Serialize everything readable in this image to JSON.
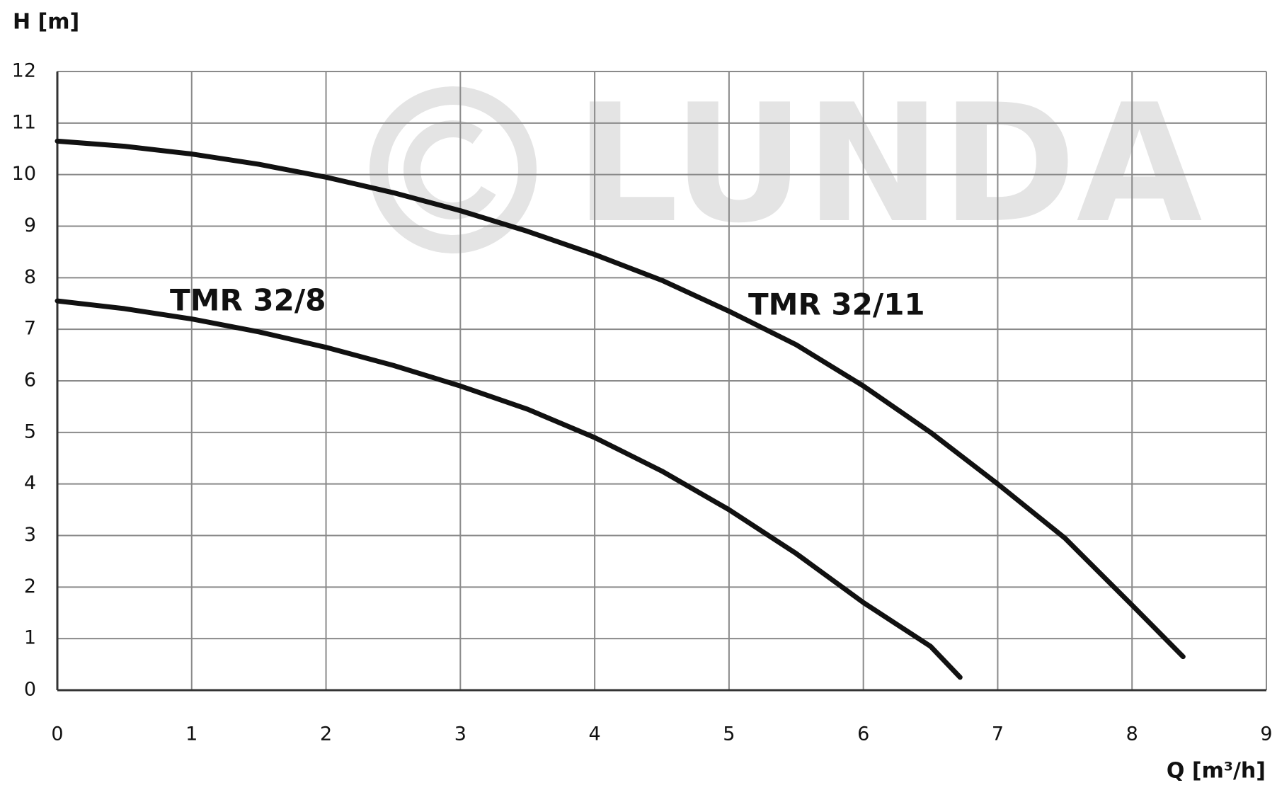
{
  "chart_data": {
    "type": "line",
    "y_label": "H [m]",
    "x_label": "Q [m³/h]",
    "watermark": "LUNDA",
    "xlim": [
      0,
      9
    ],
    "xticks": [
      0,
      1,
      2,
      3,
      4,
      5,
      6,
      7,
      8,
      9
    ],
    "ylim": [
      0,
      12
    ],
    "yticks": [
      0,
      1,
      2,
      3,
      4,
      5,
      6,
      7,
      8,
      9,
      10,
      11,
      12
    ],
    "grid": true,
    "series": [
      {
        "name": "TMR 32/8",
        "color": "#111111",
        "x": [
          0,
          0.5,
          1,
          1.5,
          2,
          2.5,
          3,
          3.5,
          4,
          4.5,
          5,
          5.5,
          6,
          6.5,
          6.72
        ],
        "values": [
          7.55,
          7.4,
          7.2,
          6.95,
          6.65,
          6.3,
          5.9,
          5.45,
          4.9,
          4.25,
          3.5,
          2.65,
          1.7,
          0.85,
          0.25
        ]
      },
      {
        "name": "TMR 32/11",
        "color": "#111111",
        "x": [
          0,
          0.5,
          1,
          1.5,
          2,
          2.5,
          3,
          3.5,
          4,
          4.5,
          5,
          5.5,
          6,
          6.5,
          7,
          7.5,
          8,
          8.38
        ],
        "values": [
          10.65,
          10.55,
          10.4,
          10.2,
          9.95,
          9.65,
          9.3,
          8.9,
          8.45,
          7.95,
          7.35,
          6.7,
          5.9,
          5.0,
          4.0,
          2.95,
          1.65,
          0.65
        ]
      }
    ]
  }
}
